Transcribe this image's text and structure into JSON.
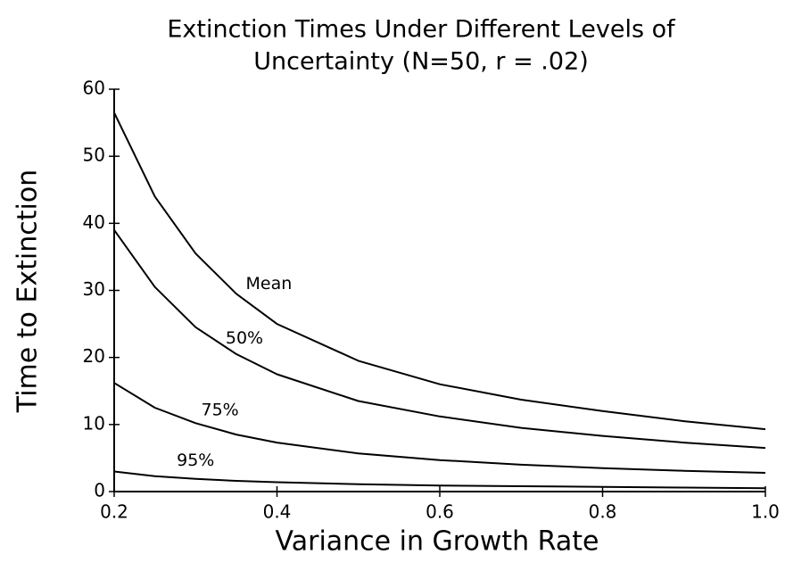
{
  "chart_data": {
    "type": "line",
    "title": [
      "Extinction Times Under Different Levels of",
      "Uncertainty (N=50, r = .02)"
    ],
    "xlabel": "Variance in Growth Rate",
    "ylabel": "Time to Extinction",
    "x": [
      0.2,
      0.25,
      0.3,
      0.35,
      0.4,
      0.5,
      0.6,
      0.7,
      0.8,
      0.9,
      1.0
    ],
    "series": [
      {
        "name": "Mean",
        "color": "#000000",
        "values": [
          56.5,
          44,
          35.5,
          29.5,
          25,
          19.5,
          16,
          13.7,
          12,
          10.5,
          9.3
        ]
      },
      {
        "name": "50%",
        "color": "#000000",
        "values": [
          39,
          30.5,
          24.5,
          20.5,
          17.5,
          13.5,
          11.2,
          9.5,
          8.3,
          7.3,
          6.5
        ]
      },
      {
        "name": "75%",
        "color": "#000000",
        "values": [
          16.2,
          12.5,
          10.2,
          8.5,
          7.3,
          5.7,
          4.7,
          4,
          3.5,
          3.1,
          2.8
        ]
      },
      {
        "name": "95%",
        "color": "#000000",
        "values": [
          3,
          2.3,
          1.9,
          1.6,
          1.4,
          1.1,
          0.9,
          0.8,
          0.7,
          0.6,
          0.5
        ]
      }
    ],
    "xlim": [
      0.2,
      1.0
    ],
    "xticks": [
      0.2,
      0.4,
      0.6,
      0.8,
      {
        "value": 1.0,
        "label": "1.0"
      }
    ],
    "ylim": [
      0,
      60
    ],
    "yticks": [
      0,
      10,
      20,
      30,
      40,
      50,
      60
    ],
    "grid": false
  }
}
